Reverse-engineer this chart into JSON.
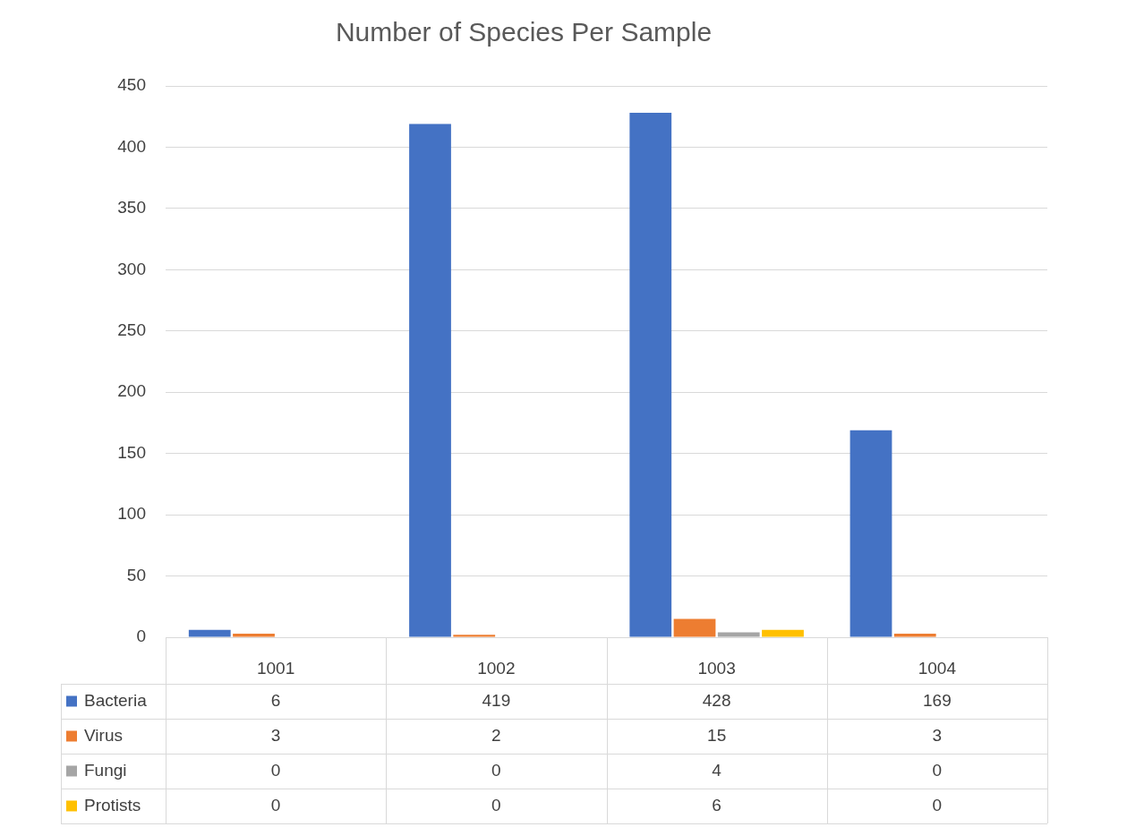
{
  "chart_data": {
    "type": "bar",
    "title": "Number of Species Per Sample",
    "categories": [
      "1001",
      "1002",
      "1003",
      "1004"
    ],
    "series": [
      {
        "name": "Bacteria",
        "color": "#4472c4",
        "values": [
          6,
          419,
          428,
          169
        ]
      },
      {
        "name": "Virus",
        "color": "#ed7d31",
        "values": [
          3,
          2,
          15,
          3
        ]
      },
      {
        "name": "Fungi",
        "color": "#a5a5a5",
        "values": [
          0,
          0,
          4,
          0
        ]
      },
      {
        "name": "Protists",
        "color": "#ffc000",
        "values": [
          0,
          0,
          6,
          0
        ]
      }
    ],
    "ylim": [
      0,
      450
    ],
    "yticks": [
      0,
      50,
      100,
      150,
      200,
      250,
      300,
      350,
      400,
      450
    ],
    "grid": "y",
    "legend": "bottom",
    "data_labels": true
  }
}
